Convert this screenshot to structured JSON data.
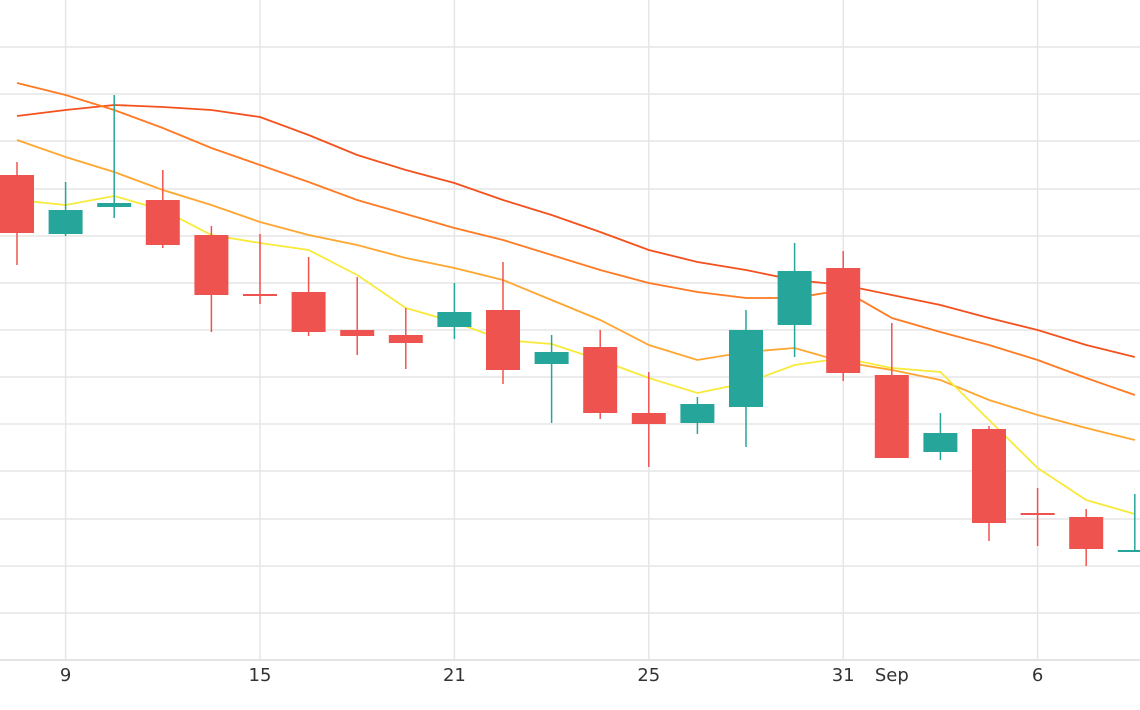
{
  "chart_data": {
    "type": "candlestick",
    "categories": [
      null,
      "9",
      null,
      null,
      null,
      "15",
      null,
      null,
      null,
      "21",
      null,
      null,
      null,
      "25",
      null,
      null,
      null,
      "31",
      "Sep",
      null,
      null,
      "6",
      null,
      null
    ],
    "open": [
      485,
      426,
      453,
      460,
      425,
      366,
      368,
      330,
      325,
      333,
      350,
      296,
      313,
      247,
      237,
      253,
      335,
      392,
      285,
      208,
      231,
      147,
      143,
      108
    ],
    "high": [
      498,
      478,
      565,
      490,
      434,
      426,
      403,
      383,
      352,
      377,
      398,
      325,
      330,
      288,
      263,
      350,
      417,
      409,
      337,
      247,
      234,
      172,
      151,
      166
    ],
    "low": [
      395,
      424,
      442,
      412,
      328,
      356,
      324,
      305,
      291,
      321,
      276,
      237,
      241,
      193,
      226,
      213,
      303,
      279,
      202,
      200,
      119,
      114,
      94,
      108
    ],
    "close": [
      427,
      450,
      457,
      415,
      365,
      364,
      328,
      324,
      317,
      348,
      290,
      308,
      247,
      236,
      256,
      330,
      389,
      287,
      202,
      227,
      137,
      145,
      111,
      110
    ],
    "up_color": "#26a69a",
    "down_color": "#ef5350",
    "series": [
      {
        "color": "#f4511e",
        "values": [
          544,
          550,
          555,
          553,
          550,
          543,
          525,
          505,
          490,
          477,
          460,
          445,
          428,
          410,
          398,
          390,
          380,
          375,
          365,
          355,
          342,
          330,
          315,
          303
        ]
      },
      {
        "color": "#ff7a22",
        "values": [
          577,
          565,
          550,
          532,
          512,
          495,
          478,
          460,
          446,
          432,
          420,
          405,
          390,
          377,
          368,
          362,
          362,
          370,
          342,
          328,
          315,
          300,
          282,
          265
        ]
      },
      {
        "color": "#ffa630",
        "values": [
          520,
          503,
          488,
          470,
          455,
          438,
          425,
          415,
          402,
          392,
          380,
          360,
          340,
          315,
          300,
          308,
          312,
          298,
          290,
          280,
          260,
          245,
          232,
          220
        ]
      },
      {
        "color": "#f7ea3a",
        "values": [
          460,
          455,
          464,
          450,
          425,
          417,
          410,
          385,
          352,
          338,
          320,
          316,
          300,
          282,
          267,
          277,
          295,
          302,
          292,
          288,
          240,
          192,
          160,
          146
        ]
      }
    ],
    "ylim": [
      0,
      660
    ],
    "yticks": [
      0,
      47,
      94,
      141,
      189,
      236,
      283,
      330,
      377,
      424,
      471,
      519,
      566,
      613
    ],
    "grid": true
  }
}
